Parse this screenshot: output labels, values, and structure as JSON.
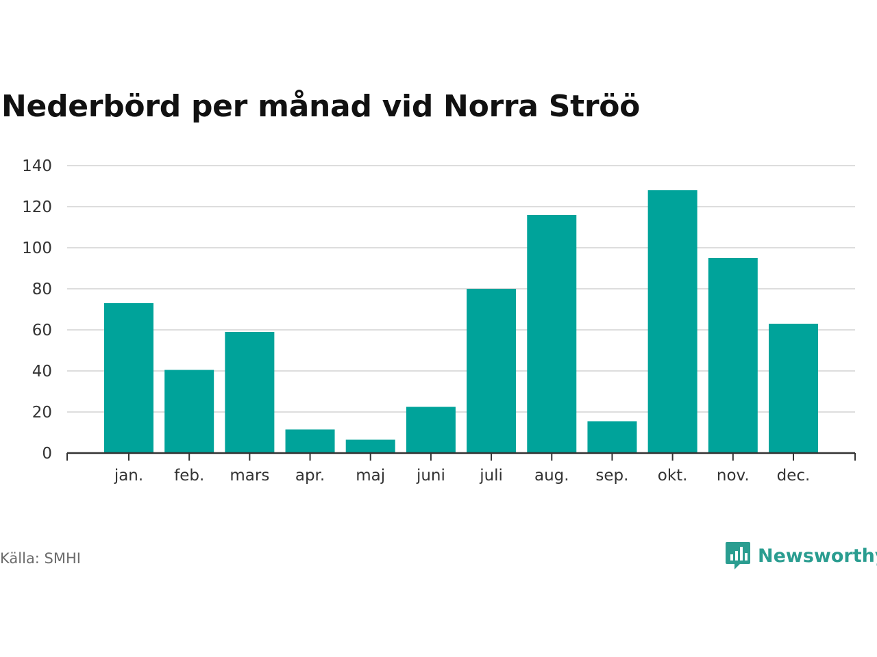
{
  "title": "Nederbörd per månad vid Norra Ströö",
  "source": "Källa: SMHI",
  "brand": {
    "name": "Newsworthy",
    "icon": "bar-chart-bubble-icon"
  },
  "colors": {
    "bar": "#00a39a",
    "grid": "#dddddd",
    "axis": "#333333",
    "brand": "#2a9d90"
  },
  "chart_data": {
    "type": "bar",
    "title": "Nederbörd per månad vid Norra Ströö",
    "xlabel": "",
    "ylabel": "",
    "categories": [
      "jan.",
      "feb.",
      "mars",
      "apr.",
      "maj",
      "juni",
      "juli",
      "aug.",
      "sep.",
      "okt.",
      "nov.",
      "dec."
    ],
    "values": [
      73,
      40.5,
      59,
      11.5,
      6.5,
      22.5,
      80,
      116,
      15.5,
      128,
      95,
      63
    ],
    "ylim": [
      0,
      140
    ],
    "yticks": [
      0,
      20,
      40,
      60,
      80,
      100,
      120,
      140
    ],
    "grid": true
  }
}
